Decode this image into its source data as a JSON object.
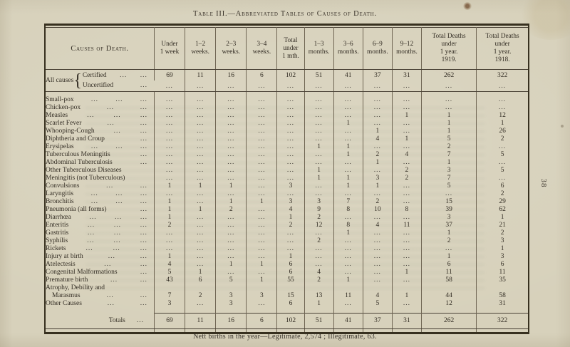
{
  "page": {
    "title": "Table III.—Abbreviated Tables of Causes of Death.",
    "footnote": "Nett births in the year—Legitimate, 2,574 ;  Illegitimate, 63.",
    "page_number": "38"
  },
  "table": {
    "row_header": "Causes of Death.",
    "columns": [
      "Under\n1 week",
      "1–2\nweeks.",
      "2–3\nweeks.",
      "3–4\nweeks.",
      "Total\nunder\n1 mth.",
      "1–3\nmonths.",
      "3–6\nmonths.",
      "6–9\nmonths.",
      "9–12\nmonths.",
      "Total Deaths\nunder\n1 year.\n1919.",
      "Total Deaths\nunder\n1 year.\n1918."
    ],
    "all_causes": {
      "group_label": "All causes",
      "brace": "{",
      "rows": [
        {
          "label": "Certified",
          "dots": [
            "...",
            "..."
          ],
          "values": [
            "69",
            "11",
            "16",
            "6",
            "102",
            "51",
            "41",
            "37",
            "31",
            "262",
            "322"
          ]
        },
        {
          "label": "Uncertified",
          "dots": [
            "..."
          ],
          "values": [
            "...",
            "...",
            "...",
            "...",
            "...",
            "...",
            "...",
            "...",
            "...",
            "...",
            "..."
          ]
        }
      ]
    },
    "rows": [
      {
        "label": "Small-pox",
        "dots": [
          "...",
          "...",
          "..."
        ],
        "values": [
          "...",
          "...",
          "...",
          "...",
          "...",
          "...",
          "...",
          "...",
          "...",
          "...",
          "..."
        ]
      },
      {
        "label": "Chicken-pox",
        "dots": [
          "...",
          "..."
        ],
        "values": [
          "...",
          "...",
          "...",
          "...",
          "...",
          "...",
          "...",
          "...",
          "...",
          "...",
          "..."
        ]
      },
      {
        "label": "Measles",
        "dots": [
          "...",
          "...",
          "..."
        ],
        "values": [
          "...",
          "...",
          "...",
          "...",
          "...",
          "...",
          "...",
          "...",
          "1",
          "1",
          "12"
        ]
      },
      {
        "label": "Scarlet Fever",
        "dots": [
          "...",
          "..."
        ],
        "values": [
          "...",
          "...",
          "...",
          "...",
          "...",
          "...",
          "1",
          "...",
          "...",
          "1",
          "1"
        ]
      },
      {
        "label": "Whooping-Cough",
        "dots": [
          "...",
          "..."
        ],
        "values": [
          "...",
          "...",
          "...",
          "...",
          "...",
          "...",
          "...",
          "1",
          "...",
          "1",
          "26"
        ]
      },
      {
        "label": "Diphtheria and Croup",
        "dots": [
          "..."
        ],
        "values": [
          "...",
          "...",
          "...",
          "...",
          "...",
          "...",
          "...",
          "4",
          "1",
          "5",
          "2"
        ]
      },
      {
        "label": "Erysipelas",
        "dots": [
          "...",
          "...",
          "..."
        ],
        "values": [
          "...",
          "...",
          "...",
          "...",
          "...",
          "1",
          "1",
          "...",
          "...",
          "2",
          "..."
        ]
      },
      {
        "label": "Tuberculous Meningitis",
        "dots": [
          "..."
        ],
        "values": [
          "...",
          "...",
          "...",
          "...",
          "...",
          "...",
          "1",
          "2",
          "4",
          "7",
          "5"
        ]
      },
      {
        "label": "Abdominal Tuberculosis",
        "dots": [
          "..."
        ],
        "values": [
          "...",
          "...",
          "...",
          "...",
          "...",
          "...",
          "...",
          "1",
          "...",
          "1",
          "..."
        ]
      },
      {
        "label": "Other Tuberculous Diseases",
        "dots": [],
        "values": [
          "...",
          "...",
          "...",
          "...",
          "...",
          "1",
          "...",
          "...",
          "2",
          "3",
          "5"
        ]
      },
      {
        "label": "Meningitis (not Tuberculous)",
        "dots": [],
        "values": [
          "...",
          "...",
          "...",
          "...",
          "...",
          "1",
          "1",
          "3",
          "2",
          "7",
          "..."
        ]
      },
      {
        "label": "Convulsions",
        "dots": [
          "...",
          "..."
        ],
        "values": [
          "1",
          "1",
          "1",
          "...",
          "3",
          "...",
          "1",
          "1",
          "...",
          "5",
          "6"
        ]
      },
      {
        "label": "Laryngitis",
        "dots": [
          "...",
          "...",
          "..."
        ],
        "values": [
          "...",
          "...",
          "...",
          "...",
          "...",
          "...",
          "...",
          "...",
          "...",
          "...",
          "2"
        ]
      },
      {
        "label": "Bronchitis",
        "dots": [
          "...",
          "...",
          "..."
        ],
        "values": [
          "1",
          "...",
          "1",
          "1",
          "3",
          "3",
          "7",
          "2",
          "...",
          "15",
          "29"
        ]
      },
      {
        "label": "Pneumonia (all forms)",
        "dots": [
          "..."
        ],
        "values": [
          "1",
          "1",
          "2",
          "...",
          "4",
          "9",
          "8",
          "10",
          "8",
          "39",
          "62"
        ]
      },
      {
        "label": "Diarrhœa",
        "dots": [
          "...",
          "...",
          "..."
        ],
        "values": [
          "1",
          "...",
          "...",
          "...",
          "1",
          "2",
          "...",
          "...",
          "...",
          "3",
          "1"
        ]
      },
      {
        "label": "Enteritis",
        "dots": [
          "...",
          "...",
          "..."
        ],
        "values": [
          "2",
          "...",
          "...",
          "...",
          "2",
          "12",
          "8",
          "4",
          "11",
          "37",
          "21"
        ]
      },
      {
        "label": "Gastritis",
        "dots": [
          "...",
          "...",
          "..."
        ],
        "values": [
          "...",
          "...",
          "...",
          "...",
          "...",
          "...",
          "1",
          "...",
          "...",
          "1",
          "2"
        ]
      },
      {
        "label": "Syphilis",
        "dots": [
          "...",
          "...",
          "..."
        ],
        "values": [
          "...",
          "...",
          "...",
          "...",
          "...",
          "2",
          "...",
          "...",
          "...",
          "2",
          "3"
        ]
      },
      {
        "label": "Rickets",
        "dots": [
          "...",
          "...",
          "..."
        ],
        "values": [
          "...",
          "...",
          "...",
          "...",
          "...",
          "...",
          "...",
          "...",
          "...",
          "...",
          "1"
        ]
      },
      {
        "label": "Injury at birth",
        "dots": [
          "...",
          "..."
        ],
        "values": [
          "1",
          "...",
          "...",
          "...",
          "1",
          "...",
          "...",
          "...",
          "...",
          "1",
          "3"
        ]
      },
      {
        "label": "Atelectesis",
        "dots": [
          "...",
          "..."
        ],
        "values": [
          "4",
          "...",
          "1",
          "1",
          "6",
          "...",
          "...",
          "...",
          "...",
          "6",
          "6"
        ]
      },
      {
        "label": "Congenital Malformations",
        "dots": [
          "..."
        ],
        "values": [
          "5",
          "1",
          "...",
          "...",
          "6",
          "4",
          "...",
          "...",
          "1",
          "11",
          "11"
        ]
      },
      {
        "label": "Premature birth",
        "dots": [
          "...",
          "..."
        ],
        "values": [
          "43",
          "6",
          "5",
          "1",
          "55",
          "2",
          "1",
          "...",
          "...",
          "58",
          "35"
        ]
      },
      {
        "label": "Atrophy, Debility and",
        "label2": "Marasmus",
        "dots": [
          "...",
          "..."
        ],
        "values": [
          "7",
          "2",
          "3",
          "3",
          "15",
          "13",
          "11",
          "4",
          "1",
          "44",
          "58"
        ]
      },
      {
        "label": "Other Causes",
        "dots": [
          "...",
          "..."
        ],
        "values": [
          "3",
          "...",
          "3",
          "...",
          "6",
          "1",
          "...",
          "5",
          "...",
          "12",
          "31"
        ]
      }
    ],
    "totals": {
      "label": "Totals",
      "dots": [
        "..."
      ],
      "values": [
        "69",
        "11",
        "16",
        "6",
        "102",
        "51",
        "41",
        "37",
        "31",
        "262",
        "322"
      ]
    }
  }
}
